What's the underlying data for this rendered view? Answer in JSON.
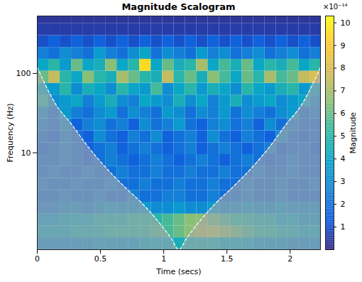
{
  "chart_data": {
    "type": "heatmap",
    "title": "Magnitude Scalogram",
    "x_label": "Time (secs)",
    "y_label": "Frequency (Hz)",
    "log": "y",
    "xlim": [
      0,
      2.24
    ],
    "ylim": [
      0.6,
      530
    ],
    "xticks": [
      0,
      0.5,
      1,
      1.5,
      2
    ],
    "yticks": [
      10,
      100
    ],
    "time_edges": [
      0,
      0.09,
      0.18,
      0.27,
      0.36,
      0.45,
      0.54,
      0.63,
      0.72,
      0.81,
      0.9,
      0.99,
      1.08,
      1.17,
      1.26,
      1.35,
      1.44,
      1.53,
      1.62,
      1.71,
      1.8,
      1.89,
      1.98,
      2.07,
      2.16,
      2.25
    ],
    "frequency_edges": [
      0.6,
      0.85,
      1.2,
      1.69,
      2.39,
      3.37,
      4.76,
      6.73,
      9.51,
      13.4,
      19.0,
      26.8,
      37.8,
      53.5,
      75.5,
      107,
      151,
      213,
      301,
      425,
      600
    ],
    "magnitude": [
      [
        3,
        3,
        3,
        3,
        3,
        3.5,
        3.5,
        3.5,
        3.5,
        4,
        4,
        4,
        4.5,
        4.5,
        4.5,
        4.5,
        4,
        4,
        4,
        3.5,
        3.5,
        3.5,
        3,
        3,
        3
      ],
      [
        4,
        4,
        4,
        4.5,
        4.5,
        4.5,
        5,
        5,
        5,
        5,
        5.5,
        5.5,
        6,
        6.5,
        7,
        7,
        6.5,
        6,
        5.5,
        5,
        5,
        4.5,
        4.5,
        4,
        4
      ],
      [
        3.5,
        3.5,
        4,
        4,
        4,
        4.5,
        4.5,
        4.5,
        5,
        5,
        5,
        5.5,
        6,
        6.5,
        6.5,
        6,
        5.5,
        5,
        5,
        4.5,
        4.5,
        4,
        4,
        3.5,
        3.5
      ],
      [
        2.5,
        2.5,
        3,
        3,
        2.5,
        3,
        3.5,
        3,
        3,
        3.5,
        3,
        3,
        3.5,
        3,
        3,
        3.5,
        3,
        3,
        3.5,
        3,
        3,
        3.5,
        3,
        3,
        3
      ],
      [
        2,
        2,
        2.5,
        2,
        2,
        2.5,
        2,
        2,
        2.5,
        2,
        2,
        2.5,
        2.5,
        2,
        2,
        2.5,
        2,
        2,
        2.5,
        2,
        2,
        2.5,
        2,
        2,
        2
      ],
      [
        2.5,
        2,
        2,
        2.5,
        2,
        2,
        2.5,
        2,
        2,
        2.5,
        2,
        2,
        2.5,
        2,
        2,
        2.5,
        2,
        2,
        2.5,
        2,
        2,
        2.5,
        2,
        2,
        2.5
      ],
      [
        2,
        2.5,
        2,
        2,
        2.5,
        2,
        2,
        2.5,
        2,
        2,
        2.5,
        2,
        2,
        2.5,
        2,
        2,
        2.5,
        2,
        2,
        2.5,
        2,
        2,
        2.5,
        2,
        2
      ],
      [
        2,
        2,
        2.5,
        2,
        1.5,
        2,
        2.5,
        2,
        1.5,
        2,
        2.5,
        2,
        1.5,
        2,
        2.5,
        2,
        1.5,
        2,
        2.5,
        2,
        1.5,
        2,
        2.5,
        2,
        2
      ],
      [
        1.5,
        2,
        2.5,
        2,
        1.5,
        2,
        2.5,
        1.5,
        2,
        2.5,
        2,
        1.5,
        2,
        2.5,
        1.5,
        2,
        2.5,
        2,
        1.5,
        2,
        2.5,
        1.5,
        2,
        2,
        1.5
      ],
      [
        2,
        1.5,
        2.5,
        2,
        1.5,
        3,
        2,
        1.5,
        2.5,
        2,
        3,
        1.5,
        2,
        2.5,
        1.5,
        3,
        2,
        1.5,
        2.5,
        2,
        1.5,
        3,
        2,
        1.5,
        2
      ],
      [
        2.5,
        2,
        3,
        1.5,
        2.5,
        3,
        2,
        2.5,
        1.5,
        3,
        2,
        2.5,
        3.5,
        2,
        1.5,
        2.5,
        3,
        2,
        2.5,
        1.5,
        3,
        2,
        2.5,
        2,
        2
      ],
      [
        3,
        2,
        3.5,
        2.5,
        2,
        3,
        3.5,
        2,
        3,
        2.5,
        2,
        3.5,
        3,
        2,
        3,
        2.5,
        3.5,
        2,
        3,
        2.5,
        2,
        3,
        3.5,
        2,
        2.5
      ],
      [
        5,
        3,
        3.5,
        4,
        2.5,
        3.5,
        4.5,
        3,
        2.5,
        4,
        3.5,
        3,
        4.5,
        3,
        4,
        2.5,
        3.5,
        4.5,
        3,
        3.5,
        4,
        3,
        3.5,
        4,
        3
      ],
      [
        4,
        3.5,
        5,
        3,
        4.5,
        4,
        3,
        5,
        4,
        3.5,
        5.5,
        3,
        4,
        5,
        3.5,
        4.5,
        4,
        3,
        5,
        4,
        3.5,
        4.5,
        5,
        3.5,
        4
      ],
      [
        6,
        7.5,
        5,
        4,
        6.5,
        5,
        4.5,
        7,
        6,
        5,
        4.5,
        7.5,
        5,
        6,
        4.5,
        6.5,
        5.5,
        4,
        6,
        5,
        7,
        5.5,
        6,
        7.5,
        8
      ],
      [
        4,
        5,
        3.5,
        6,
        4,
        4.5,
        6.5,
        4,
        5,
        9.5,
        4,
        6,
        4.5,
        5,
        7,
        4,
        5.5,
        4.5,
        6,
        4,
        5,
        4.5,
        5.5,
        4,
        5
      ],
      [
        2.5,
        2,
        3,
        2.5,
        2,
        3.5,
        2.5,
        2,
        3,
        4,
        2,
        3,
        2.5,
        2,
        3.5,
        2.5,
        3,
        2,
        2.5,
        3,
        2,
        2.5,
        3,
        2,
        2.5
      ],
      [
        1,
        1.5,
        1,
        1.5,
        1,
        1.5,
        1,
        1.5,
        1,
        1.5,
        1,
        1.5,
        1,
        1.5,
        1,
        1.5,
        1,
        1.5,
        1,
        1.5,
        1,
        1.5,
        1,
        1.5,
        1
      ],
      [
        0.5,
        0.5,
        0.5,
        0.5,
        0.5,
        0.5,
        0.5,
        0.5,
        0.5,
        0.5,
        0.5,
        0.5,
        0.5,
        0.5,
        0.5,
        0.5,
        0.5,
        0.5,
        0.5,
        0.5,
        0.5,
        0.5,
        0.5,
        0.5,
        0.5
      ],
      [
        0.3,
        0.3,
        0.3,
        0.3,
        0.3,
        0.3,
        0.3,
        0.3,
        0.3,
        0.3,
        0.3,
        0.3,
        0.3,
        0.3,
        0.3,
        0.3,
        0.3,
        0.3,
        0.3,
        0.3,
        0.3,
        0.3,
        0.3,
        0.3,
        0.3
      ]
    ],
    "colorbar": {
      "label": "Magnitude",
      "exponent_label": "×10⁻¹⁴",
      "range": [
        0,
        10.3
      ],
      "ticks": [
        1,
        2,
        3,
        4,
        5,
        6,
        7,
        8,
        9,
        10
      ]
    },
    "coi": {
      "line_style": "dashed",
      "time": [
        0,
        0.05,
        0.15,
        0.27,
        0.4,
        0.55,
        0.7,
        0.83,
        0.95,
        1.06,
        1.12,
        1.18,
        1.29,
        1.41,
        1.54,
        1.69,
        1.84,
        1.97,
        2.09,
        2.19,
        2.24
      ],
      "frequency": [
        120,
        80,
        40,
        23,
        12,
        6.3,
        3.6,
        2.3,
        1.4,
        0.83,
        0.6,
        0.83,
        1.4,
        2.3,
        3.6,
        6.3,
        12,
        23,
        40,
        80,
        120
      ]
    }
  }
}
